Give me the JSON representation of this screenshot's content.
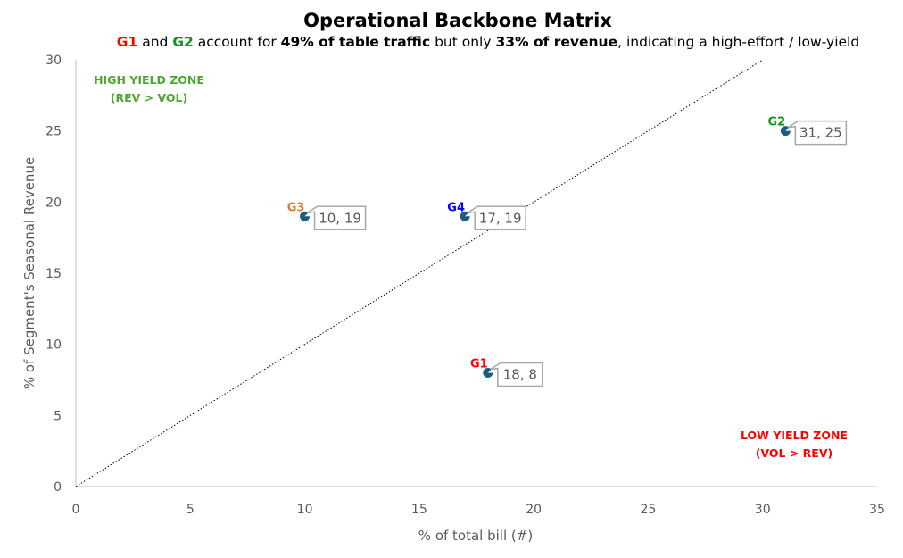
{
  "title": "Operational Backbone Matrix",
  "subtitle_parts": [
    {
      "text": "G1",
      "bold": true,
      "color": "#ff0000"
    },
    {
      "text": " and ",
      "bold": false,
      "color": "#000000"
    },
    {
      "text": "G2",
      "bold": true,
      "color": "#109618"
    },
    {
      "text": " account for ",
      "bold": false,
      "color": "#000000"
    },
    {
      "text": "49% of table traffic",
      "bold": true,
      "color": "#000000"
    },
    {
      "text": " but only ",
      "bold": false,
      "color": "#000000"
    },
    {
      "text": "33% of revenue",
      "bold": true,
      "color": "#000000"
    },
    {
      "text": ", indicating a high-effort / low-yield",
      "bold": false,
      "color": "#000000"
    }
  ],
  "chart_data": {
    "type": "scatter",
    "xlabel": "% of total bill (#)",
    "ylabel": "% of Segment's Seasonal Revenue",
    "xlim": [
      0,
      35
    ],
    "ylim": [
      0,
      30
    ],
    "x_ticks": [
      0,
      5,
      10,
      15,
      20,
      25,
      30,
      35
    ],
    "y_ticks": [
      0,
      5,
      10,
      15,
      20,
      25,
      30
    ],
    "grid": false,
    "marker_color": "#1b5e7a",
    "reference_line": {
      "from": [
        0,
        0
      ],
      "to": [
        30,
        30
      ],
      "style": "dotted"
    },
    "points": [
      {
        "name": "G1",
        "x": 18,
        "y": 8,
        "value_label": "18, 8",
        "color": "#ff0000"
      },
      {
        "name": "G2",
        "x": 31,
        "y": 25,
        "value_label": "31, 25",
        "color": "#109618"
      },
      {
        "name": "G3",
        "x": 10,
        "y": 19,
        "value_label": "10, 19",
        "color": "#e07b24"
      },
      {
        "name": "G4",
        "x": 17,
        "y": 19,
        "value_label": "17, 19",
        "color": "#0000ff"
      }
    ],
    "annotations": [
      {
        "lines": [
          "HIGH YIELD ZONE",
          "(REV > VOL)"
        ],
        "color": "#4ea72e",
        "position": "top-left"
      },
      {
        "lines": [
          "LOW YIELD ZONE",
          "(VOL > REV)"
        ],
        "color": "#ff0000",
        "position": "bottom-right"
      }
    ]
  }
}
